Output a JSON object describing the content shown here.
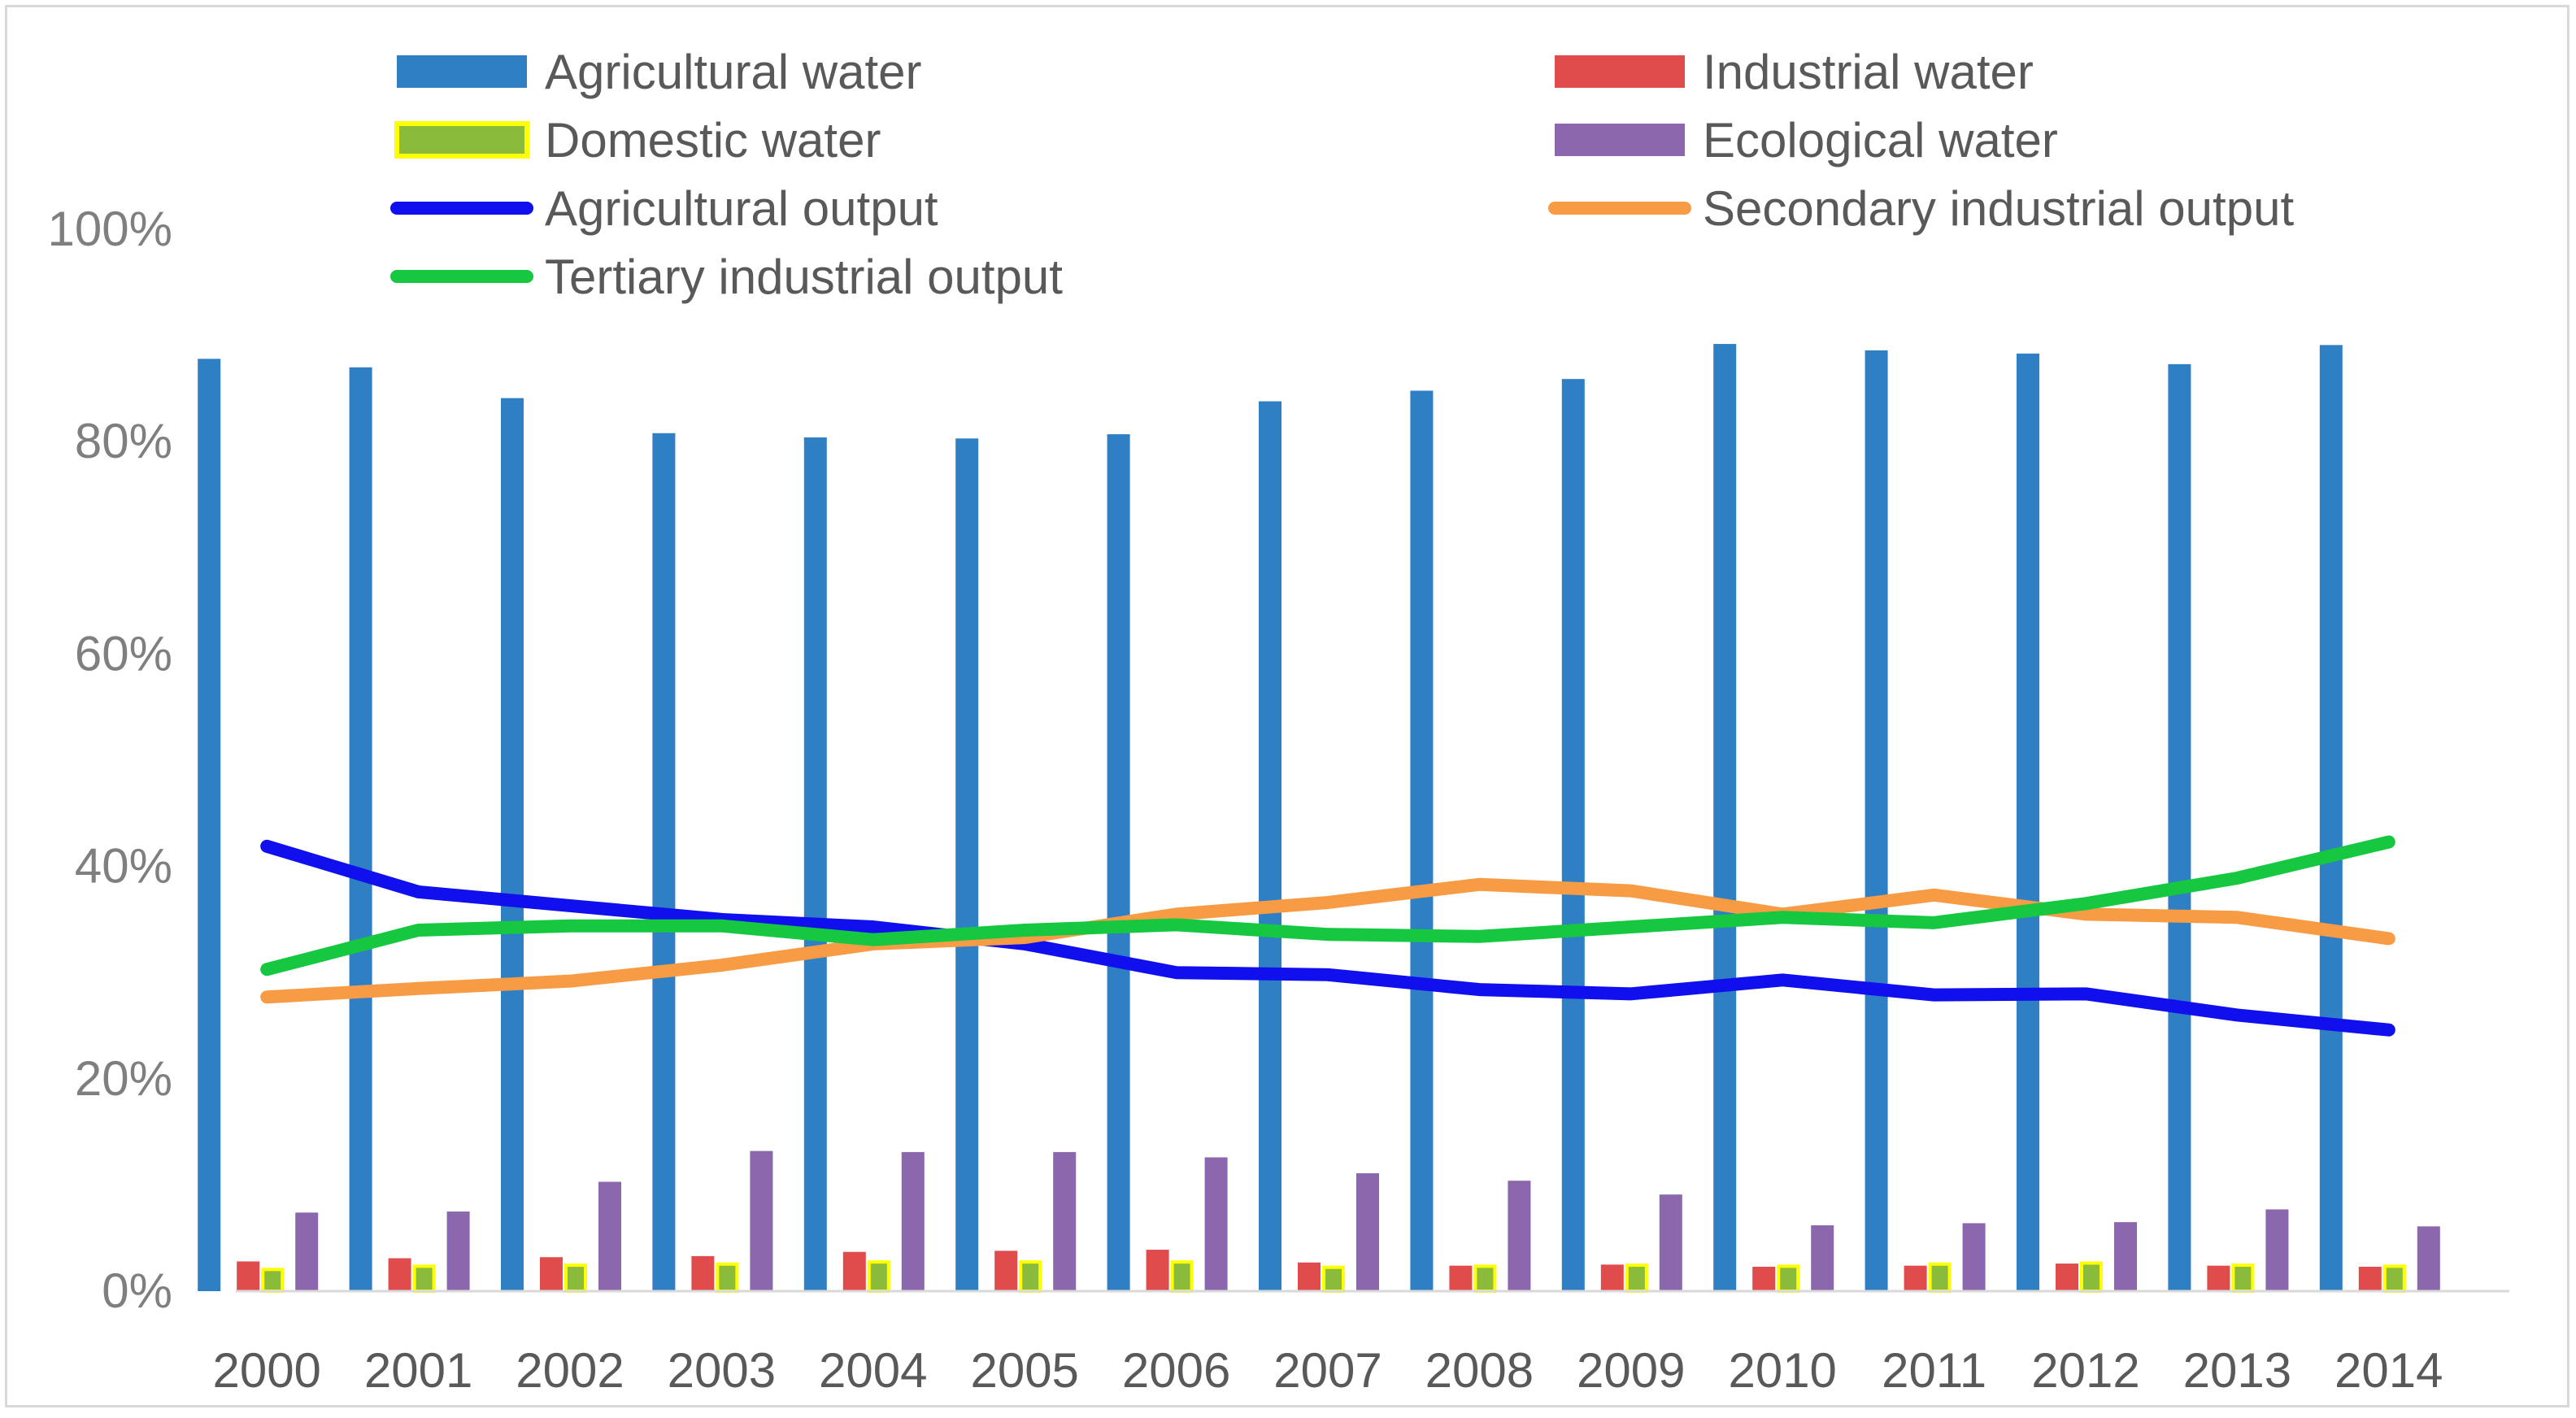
{
  "chart_data": {
    "type": "bar",
    "categories": [
      "2000",
      "2001",
      "2002",
      "2003",
      "2004",
      "2005",
      "2006",
      "2007",
      "2008",
      "2009",
      "2010",
      "2011",
      "2012",
      "2013",
      "2014"
    ],
    "ylim": [
      0,
      1
    ],
    "yticks": [
      {
        "value": 0,
        "label": "0%"
      },
      {
        "value": 0.2,
        "label": "20%"
      },
      {
        "value": 0.4,
        "label": "40%"
      },
      {
        "value": 0.6,
        "label": "60%"
      },
      {
        "value": 0.8,
        "label": "80%"
      },
      {
        "value": 1.0,
        "label": "100%"
      }
    ],
    "grid": false,
    "legend_position": "top",
    "bar_series": [
      {
        "name": "Agricultural water",
        "color": "#2e7fc4",
        "values": [
          0.878,
          0.87,
          0.841,
          0.808,
          0.804,
          0.803,
          0.807,
          0.838,
          0.848,
          0.859,
          0.892,
          0.886,
          0.883,
          0.873,
          0.891
        ]
      },
      {
        "name": "Industrial water",
        "color": "#e04c4c",
        "values": [
          0.028,
          0.031,
          0.032,
          0.033,
          0.037,
          0.038,
          0.039,
          0.027,
          0.024,
          0.025,
          0.023,
          0.024,
          0.026,
          0.024,
          0.023
        ]
      },
      {
        "name": "Domestic water",
        "color": "#8bbb3b",
        "border": "#ffff00",
        "values": [
          0.022,
          0.025,
          0.026,
          0.027,
          0.029,
          0.029,
          0.029,
          0.024,
          0.025,
          0.026,
          0.025,
          0.027,
          0.028,
          0.026,
          0.025
        ]
      },
      {
        "name": "Ecological water",
        "color": "#8b68ad",
        "values": [
          0.074,
          0.075,
          0.103,
          0.132,
          0.131,
          0.131,
          0.126,
          0.111,
          0.104,
          0.091,
          0.062,
          0.064,
          0.065,
          0.077,
          0.061
        ]
      }
    ],
    "line_series": [
      {
        "name": "Agricultural output",
        "color": "#1010ee",
        "values": [
          0.419,
          0.376,
          0.363,
          0.35,
          0.343,
          0.327,
          0.3,
          0.298,
          0.284,
          0.28,
          0.293,
          0.279,
          0.28,
          0.26,
          0.246
        ]
      },
      {
        "name": "Secondary industrial output",
        "color": "#f89b45",
        "values": [
          0.277,
          0.285,
          0.292,
          0.307,
          0.327,
          0.333,
          0.355,
          0.366,
          0.383,
          0.377,
          0.355,
          0.373,
          0.355,
          0.352,
          0.332
        ]
      },
      {
        "name": "Tertiary industrial output",
        "color": "#15c840",
        "values": [
          0.303,
          0.34,
          0.344,
          0.344,
          0.331,
          0.34,
          0.345,
          0.336,
          0.334,
          0.343,
          0.352,
          0.347,
          0.365,
          0.389,
          0.423
        ]
      }
    ]
  }
}
